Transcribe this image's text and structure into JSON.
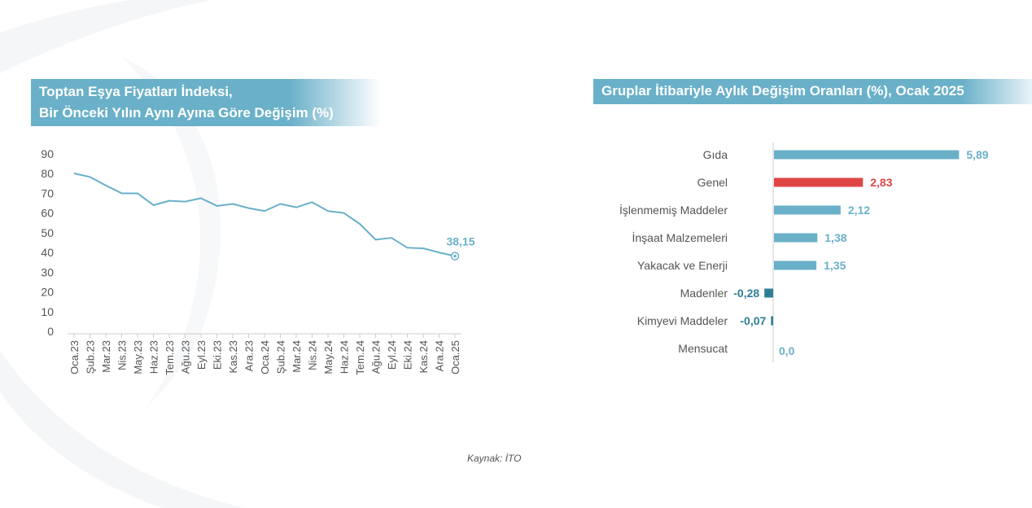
{
  "left_title": {
    "line1": "Toptan Eşya Fiyatları İndeksi,",
    "line2": "Bir Önceki Yılın Aynı Ayına Göre Değişim (%)"
  },
  "right_title": "Gruplar İtibariyle Aylık Değişim Oranları (%), Ocak 2025",
  "source": "Kaynak: İTO",
  "colors": {
    "line": "#6ab0c9",
    "bar": "#6ab0c9",
    "highlight": "#e04545",
    "negative": "#2f7e95",
    "axis": "#cccccc",
    "text": "#555555"
  },
  "chart_data": [
    {
      "type": "line",
      "title": "Toptan Eşya Fiyatları İndeksi, Bir Önceki Yılın Aynı Ayına Göre Değişim (%)",
      "categories": [
        "Oca.23",
        "Şub.23",
        "Mar.23",
        "Nis.23",
        "May.23",
        "Haz.23",
        "Tem.23",
        "Ağu.23",
        "Eyl.23",
        "Eki.23",
        "Kas.23",
        "Ara.23",
        "Oca.24",
        "Şub.24",
        "Mar.24",
        "Nis.24",
        "May.24",
        "Haz.24",
        "Tem.24",
        "Ağu.24",
        "Eyl.24",
        "Eki.24",
        "Kas.24",
        "Ara.24",
        "Oca.25"
      ],
      "values": [
        80.1,
        78.3,
        74.0,
        70.0,
        70.0,
        64.0,
        66.2,
        65.8,
        67.5,
        63.6,
        64.6,
        62.5,
        61.0,
        64.6,
        62.9,
        65.5,
        61.0,
        60.0,
        54.5,
        46.5,
        47.4,
        42.4,
        42.1,
        40.0,
        38.15
      ],
      "yticks": [
        "90",
        "80",
        "70",
        "60",
        "50",
        "40",
        "30",
        "20",
        "10",
        "0"
      ],
      "ylim": [
        0,
        90
      ],
      "last_label": "38,15"
    },
    {
      "type": "bar",
      "orientation": "horizontal",
      "title": "Gruplar İtibariyle Aylık Değişim Oranları (%), Ocak 2025",
      "categories": [
        "Gıda",
        "Genel",
        "İşlenmemiş Maddeler",
        "İnşaat Malzemeleri",
        "Yakacak ve Enerji",
        "Madenler",
        "Kimyevi Maddeler",
        "Mensucat"
      ],
      "values": [
        5.89,
        2.83,
        2.12,
        1.38,
        1.35,
        -0.28,
        -0.07,
        0.0
      ],
      "labels": [
        "5,89",
        "2,83",
        "2,12",
        "1,38",
        "1,35",
        "-0,28",
        "-0,07",
        "0,0"
      ],
      "highlight": "Genel"
    }
  ]
}
